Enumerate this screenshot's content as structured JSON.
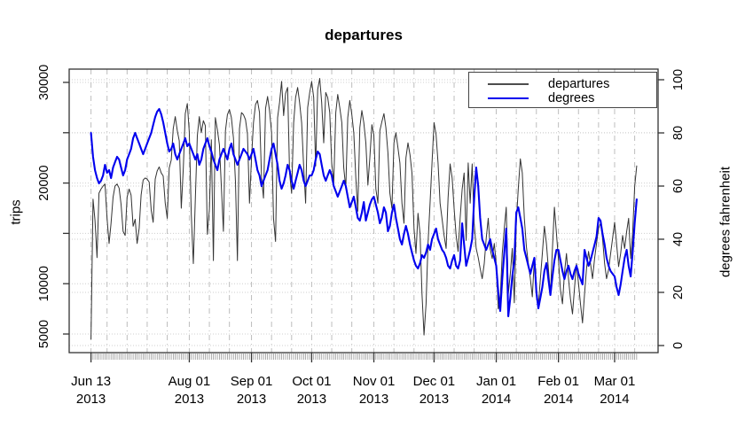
{
  "title": "departures",
  "legend": {
    "items": [
      {
        "label": "departures",
        "color": "#4d4d4d"
      },
      {
        "label": "degrees",
        "color": "#0000ee"
      }
    ]
  },
  "axes": {
    "left": {
      "label": "trips",
      "ticks": [
        {
          "value": 5000,
          "label": "5000"
        },
        {
          "value": 10000,
          "label": "10000"
        },
        {
          "value": 15000,
          "label": ""
        },
        {
          "value": 20000,
          "label": "20000"
        },
        {
          "value": 25000,
          "label": ""
        },
        {
          "value": 30000,
          "label": "30000"
        }
      ]
    },
    "right": {
      "label": "degrees fahrenheit",
      "ticks": [
        0,
        20,
        40,
        60,
        80,
        100
      ]
    },
    "bottom": {
      "major_ticks": [
        {
          "day": 0,
          "line1": "Jun 13",
          "line2": "2013"
        },
        {
          "day": 49,
          "line1": "Aug 01",
          "line2": "2013"
        },
        {
          "day": 80,
          "line1": "Sep 01",
          "line2": "2013"
        },
        {
          "day": 110,
          "line1": "Oct 01",
          "line2": "2013"
        },
        {
          "day": 141,
          "line1": "Nov 01",
          "line2": "2013"
        },
        {
          "day": 171,
          "line1": "Dec 01",
          "line2": "2013"
        },
        {
          "day": 202,
          "line1": "Jan 01",
          "line2": "2014"
        },
        {
          "day": 233,
          "line1": "Feb 01",
          "line2": "2014"
        },
        {
          "day": 261,
          "line1": "Mar 01",
          "line2": "2014"
        }
      ]
    }
  },
  "colors": {
    "departures": "#333333",
    "degrees": "#0000ee",
    "grid_dotted": "#cfcfcf",
    "grid_dashdot": "#bdbdbd",
    "axis": "#333333",
    "minor_tick": "#8a8a8a"
  },
  "chart_data": {
    "type": "line",
    "title": "departures",
    "x_start_date": "2013-06-13",
    "x_unit": "days",
    "x_gridline_days": [
      0,
      8,
      18,
      28,
      38,
      49,
      59,
      69,
      80,
      90,
      100,
      110,
      120,
      130,
      141,
      151,
      161,
      171,
      181,
      191,
      202,
      212,
      222,
      233,
      243,
      253,
      261,
      271
    ],
    "left_ylabel": "trips",
    "right_ylabel": "degrees fahrenheit",
    "left_ticks": [
      5000,
      10000,
      15000,
      20000,
      25000,
      30000
    ],
    "left_ylim": [
      3000,
      31300
    ],
    "right_ylim": [
      0,
      100
    ],
    "grid": true,
    "legend_position": "top-right",
    "series": [
      {
        "name": "departures",
        "axis": "left",
        "color": "#333333",
        "values": [
          4500,
          18400,
          16300,
          12600,
          19000,
          19400,
          19700,
          19900,
          16500,
          14000,
          16000,
          18600,
          19700,
          19900,
          19500,
          17900,
          15200,
          14800,
          18600,
          19400,
          18800,
          15700,
          16400,
          14000,
          15500,
          18800,
          20300,
          20500,
          20400,
          20100,
          17300,
          16100,
          20400,
          21200,
          21600,
          21000,
          20700,
          18000,
          16500,
          21500,
          22300,
          25400,
          26600,
          25200,
          24200,
          17500,
          21500,
          26900,
          27900,
          25100,
          16800,
          12000,
          18300,
          24700,
          26600,
          25000,
          26200,
          25700,
          14900,
          17400,
          24300,
          12300,
          26500,
          25300,
          23800,
          19600,
          15200,
          25200,
          26800,
          27300,
          26500,
          24500,
          20100,
          12300,
          25400,
          27000,
          26800,
          26300,
          24900,
          18000,
          22500,
          26000,
          27800,
          28200,
          27000,
          20500,
          18500,
          27400,
          28600,
          27200,
          25000,
          16500,
          14200,
          26500,
          28000,
          30100,
          26700,
          28900,
          29500,
          21000,
          19000,
          26000,
          28500,
          29500,
          28000,
          26000,
          21600,
          18000,
          27500,
          29000,
          30100,
          28500,
          21700,
          29300,
          30400,
          28000,
          24000,
          29000,
          28500,
          27000,
          22000,
          20000,
          27000,
          28800,
          27500,
          26000,
          21500,
          19500,
          26500,
          28200,
          26800,
          25000,
          20500,
          17200,
          25500,
          27200,
          26000,
          24000,
          19800,
          22500,
          25800,
          24800,
          19400,
          18000,
          25200,
          26100,
          26900,
          25500,
          23000,
          19000,
          17500,
          24000,
          25000,
          23500,
          22000,
          18000,
          16000,
          22500,
          24000,
          22800,
          21000,
          15500,
          13000,
          17000,
          15000,
          9000,
          4900,
          8000,
          14000,
          18000,
          22000,
          26000,
          24800,
          22000,
          18000,
          16400,
          14800,
          13500,
          18500,
          21900,
          20500,
          17500,
          14800,
          13200,
          16500,
          19400,
          21000,
          14300,
          22000,
          18000,
          21900,
          16000,
          13500,
          12600,
          11500,
          10500,
          12000,
          14500,
          16500,
          13450,
          12500,
          14000,
          12000,
          7500,
          8500,
          13000,
          15500,
          17600,
          9000,
          11000,
          13500,
          8100,
          16000,
          19500,
          22400,
          21000,
          16500,
          13700,
          12000,
          10500,
          8700,
          12500,
          9500,
          7800,
          10500,
          13000,
          15700,
          14000,
          11500,
          9000,
          13500,
          17600,
          15000,
          12500,
          9400,
          8000,
          11000,
          13000,
          10500,
          8500,
          7000,
          9500,
          12000,
          10000,
          8000,
          6100,
          9000,
          11500,
          13200,
          12000,
          10500,
          12500,
          14000,
          15500,
          16000,
          14500,
          12000,
          10500,
          11400,
          13000,
          14500,
          16100,
          14000,
          11700,
          13000,
          14800,
          13500,
          15200,
          16500,
          12500,
          15000,
          19650,
          21700
        ]
      },
      {
        "name": "degrees",
        "axis": "right",
        "color": "#0000ee",
        "values": [
          80,
          71,
          66,
          63,
          61,
          62,
          64,
          68,
          65,
          66,
          63,
          67,
          69,
          71,
          70,
          67,
          64,
          66,
          70,
          72,
          74,
          78,
          80,
          78,
          76,
          74,
          72,
          74,
          76,
          78,
          80,
          83,
          86,
          88,
          89,
          87,
          84,
          80,
          76,
          73,
          74,
          76,
          72,
          70,
          72,
          74,
          76,
          78,
          75,
          76,
          74,
          72,
          70,
          72,
          68,
          70,
          74,
          76,
          78,
          75,
          73,
          70,
          68,
          66,
          70,
          72,
          74,
          72,
          70,
          74,
          76,
          72,
          70,
          68,
          70,
          72,
          74,
          73,
          72,
          70,
          72,
          74,
          70,
          66,
          64,
          60,
          62,
          64,
          66,
          70,
          74,
          76,
          72,
          68,
          62,
          59,
          61,
          64,
          68,
          66,
          62,
          59,
          62,
          65,
          68,
          66,
          62,
          60,
          62,
          64,
          64,
          66,
          70,
          73,
          72,
          68,
          64,
          62,
          64,
          66,
          64,
          60,
          58,
          56,
          58,
          60,
          62,
          60,
          56,
          52,
          54,
          56,
          52,
          48,
          47,
          50,
          54,
          47,
          50,
          53,
          55,
          56,
          53,
          50,
          46,
          48,
          52,
          50,
          43,
          45,
          50,
          53,
          48,
          44,
          40,
          38,
          42,
          45,
          42,
          38,
          35,
          32,
          30,
          29,
          31,
          34,
          33,
          35,
          38,
          36,
          40,
          42,
          44,
          40,
          38,
          36,
          35,
          33,
          30,
          29,
          32,
          34,
          30,
          29,
          32,
          46,
          38,
          30,
          33,
          36,
          40,
          55,
          67,
          60,
          48,
          40,
          38,
          36,
          38,
          40,
          36,
          33,
          30,
          20,
          13,
          25,
          35,
          44,
          11,
          18,
          26,
          32,
          50,
          52,
          48,
          44,
          36,
          33,
          30,
          27,
          30,
          33,
          20,
          14,
          18,
          22,
          28,
          31,
          25,
          19,
          26,
          32,
          36,
          36,
          32,
          28,
          25,
          28,
          30,
          27,
          25,
          28,
          30,
          27,
          25,
          23,
          36,
          33,
          30,
          32,
          35,
          38,
          41,
          48,
          47,
          42,
          38,
          33,
          30,
          28,
          27,
          26,
          22,
          19,
          23,
          28,
          33,
          36,
          30,
          26,
          35,
          46,
          55
        ]
      }
    ]
  }
}
